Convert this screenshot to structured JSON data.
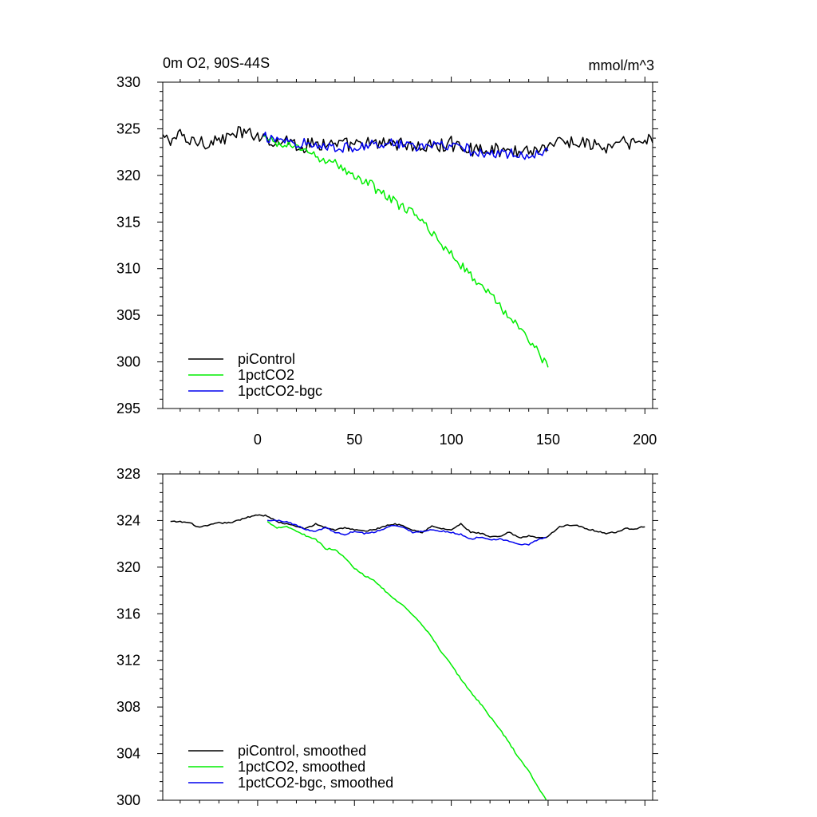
{
  "chart_data": [
    {
      "type": "line",
      "title": "0m O2, 90S-44S",
      "units": "mmol/m^3",
      "xlim": [
        -49,
        204
      ],
      "ylim": [
        295,
        330
      ],
      "x_ticks": [
        0,
        50,
        100,
        150,
        200
      ],
      "y_ticks": [
        295,
        300,
        305,
        310,
        315,
        320,
        325,
        330
      ],
      "x_tick_labels": [
        "0",
        "50",
        "100",
        "150",
        "200"
      ],
      "y_tick_labels": [
        "295",
        "300",
        "305",
        "310",
        "315",
        "320",
        "325",
        "330"
      ],
      "legend_position": "bottom-left",
      "series": [
        {
          "name": "piControl",
          "color": "#000000",
          "x": [
            -49,
            -45,
            -40,
            -35,
            -30,
            -25,
            -20,
            -15,
            -10,
            -5,
            0,
            5,
            10,
            15,
            20,
            25,
            30,
            35,
            40,
            45,
            50,
            55,
            60,
            65,
            70,
            75,
            80,
            85,
            90,
            95,
            100,
            105,
            110,
            115,
            120,
            125,
            130,
            135,
            140,
            145,
            150,
            155,
            160,
            165,
            170,
            175,
            180,
            185,
            190,
            195,
            200,
            204
          ],
          "y": [
            324.0,
            323.8,
            324.3,
            323.6,
            323.8,
            323.5,
            323.9,
            324.0,
            324.6,
            324.3,
            324.5,
            324.0,
            323.6,
            323.9,
            323.3,
            323.1,
            323.6,
            323.4,
            323.3,
            323.2,
            323.2,
            323.4,
            323.2,
            323.5,
            323.6,
            323.4,
            323.1,
            323.0,
            323.1,
            323.2,
            323.4,
            323.1,
            322.9,
            322.8,
            322.7,
            322.8,
            322.5,
            322.8,
            322.7,
            322.8,
            323.3,
            323.6,
            323.5,
            323.6,
            323.4,
            323.2,
            322.9,
            323.3,
            323.5,
            323.4,
            323.7,
            323.9
          ],
          "noise": 0.7
        },
        {
          "name": "1pctCO2",
          "color": "#00ee00",
          "x": [
            3,
            5,
            10,
            15,
            20,
            25,
            30,
            35,
            40,
            45,
            50,
            55,
            60,
            65,
            70,
            75,
            80,
            85,
            90,
            95,
            100,
            105,
            110,
            115,
            120,
            125,
            130,
            135,
            140,
            145,
            150
          ],
          "y": [
            324.0,
            323.8,
            323.3,
            323.4,
            323.0,
            322.7,
            322.1,
            321.5,
            321.4,
            320.6,
            319.8,
            319.4,
            318.8,
            318.0,
            317.3,
            316.6,
            315.9,
            315.0,
            313.9,
            312.6,
            311.6,
            310.4,
            309.3,
            308.2,
            307.3,
            306.1,
            304.8,
            303.6,
            302.5,
            301.0,
            299.5
          ],
          "noise": 0.45
        },
        {
          "name": "1pctCO2-bgc",
          "color": "#0000ee",
          "x": [
            3,
            5,
            10,
            15,
            20,
            25,
            30,
            35,
            40,
            45,
            50,
            55,
            60,
            65,
            70,
            75,
            80,
            85,
            90,
            95,
            100,
            105,
            110,
            115,
            120,
            125,
            130,
            135,
            140,
            145,
            150
          ],
          "y": [
            324.0,
            323.9,
            324.1,
            323.8,
            323.5,
            323.4,
            323.1,
            323.3,
            323.2,
            323.0,
            323.1,
            323.1,
            323.2,
            323.3,
            323.6,
            323.4,
            323.1,
            323.2,
            323.2,
            323.1,
            322.9,
            323.0,
            322.6,
            322.4,
            322.3,
            322.6,
            322.4,
            322.2,
            322.0,
            322.4,
            322.6
          ],
          "noise": 0.55
        }
      ]
    },
    {
      "type": "line",
      "xlim": [
        -49,
        204
      ],
      "ylim": [
        300,
        328
      ],
      "x_ticks": [
        0,
        50,
        100,
        150,
        200
      ],
      "y_ticks": [
        300,
        304,
        308,
        312,
        316,
        320,
        324,
        328
      ],
      "y_tick_labels": [
        "300",
        "304",
        "308",
        "312",
        "316",
        "320",
        "324",
        "328"
      ],
      "legend_position": "bottom-left",
      "series": [
        {
          "name": "piControl, smoothed",
          "color": "#000000",
          "x": [
            -45,
            -40,
            -35,
            -30,
            -25,
            -20,
            -15,
            -10,
            -5,
            0,
            5,
            10,
            15,
            20,
            25,
            30,
            35,
            40,
            45,
            50,
            55,
            60,
            65,
            70,
            75,
            80,
            85,
            90,
            95,
            100,
            105,
            110,
            115,
            120,
            125,
            130,
            135,
            140,
            145,
            150,
            155,
            160,
            165,
            170,
            175,
            180,
            185,
            190,
            195,
            200
          ],
          "y": [
            323.9,
            323.9,
            323.8,
            323.4,
            323.6,
            323.8,
            323.8,
            324.0,
            324.3,
            324.5,
            324.4,
            323.9,
            323.7,
            323.5,
            323.3,
            323.7,
            323.4,
            323.2,
            323.4,
            323.2,
            323.1,
            323.2,
            323.5,
            323.7,
            323.6,
            323.2,
            323.0,
            323.5,
            323.3,
            323.2,
            323.7,
            323.0,
            322.9,
            322.6,
            322.6,
            323.0,
            322.5,
            322.7,
            322.5,
            322.6,
            323.4,
            323.6,
            323.6,
            323.3,
            323.1,
            322.9,
            323.0,
            323.3,
            323.3,
            323.5
          ],
          "noise": 0
        },
        {
          "name": "1pctCO2, smoothed",
          "color": "#00ee00",
          "x": [
            5,
            10,
            15,
            20,
            25,
            30,
            35,
            40,
            45,
            50,
            55,
            60,
            65,
            70,
            75,
            80,
            85,
            90,
            95,
            100,
            105,
            110,
            115,
            120,
            125,
            130,
            135,
            140,
            145,
            149
          ],
          "y": [
            323.9,
            323.4,
            323.5,
            323.1,
            322.7,
            322.4,
            321.6,
            321.5,
            320.8,
            319.9,
            319.3,
            318.9,
            318.1,
            317.3,
            316.7,
            315.9,
            315.0,
            314.0,
            312.7,
            311.6,
            310.4,
            309.3,
            308.3,
            307.2,
            306.1,
            304.9,
            303.6,
            302.5,
            301.1,
            300.0
          ],
          "noise": 0
        },
        {
          "name": "1pctCO2-bgc, smoothed",
          "color": "#0000ee",
          "x": [
            5,
            10,
            15,
            20,
            25,
            30,
            35,
            40,
            45,
            50,
            55,
            60,
            65,
            70,
            75,
            80,
            85,
            90,
            95,
            100,
            105,
            110,
            115,
            120,
            125,
            130,
            135,
            140,
            145,
            149
          ],
          "y": [
            324.0,
            324.0,
            323.9,
            323.6,
            323.2,
            323.1,
            323.4,
            323.0,
            322.8,
            323.1,
            322.9,
            323.0,
            323.3,
            323.6,
            323.4,
            323.0,
            323.1,
            323.2,
            323.1,
            323.0,
            322.8,
            322.4,
            322.6,
            322.3,
            322.4,
            322.2,
            322.0,
            321.9,
            322.4,
            322.6
          ],
          "noise": 0
        }
      ]
    }
  ]
}
